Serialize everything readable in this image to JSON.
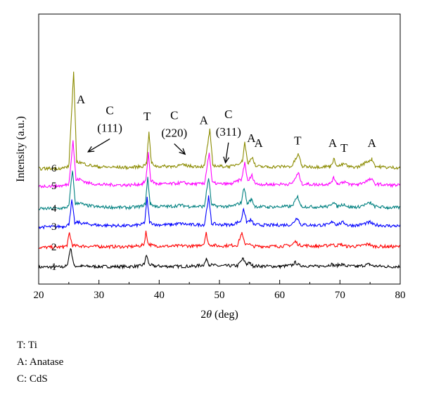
{
  "chart_data": {
    "type": "line",
    "xlabel_parts": [
      "2",
      "θ",
      " (deg)"
    ],
    "ylabel": "Intensity (a.u.)",
    "xlim": [
      20,
      80
    ],
    "x_ticks": [
      20,
      30,
      40,
      50,
      60,
      70,
      80
    ],
    "y_ticks": "none",
    "grid": false,
    "legend": "none",
    "series": [
      {
        "name": "1",
        "color": "#000000",
        "baseline": 0,
        "points": [
          [
            20,
            0
          ],
          [
            24,
            0.2
          ],
          [
            24.7,
            1
          ],
          [
            25.3,
            16
          ],
          [
            25.9,
            1
          ],
          [
            27,
            0.8
          ],
          [
            30,
            0.5
          ],
          [
            35,
            0.5
          ],
          [
            36.9,
            1
          ],
          [
            37.5,
            2.5
          ],
          [
            37.9,
            10
          ],
          [
            38.3,
            2.5
          ],
          [
            39,
            1
          ],
          [
            42,
            0.6
          ],
          [
            46,
            0.8
          ],
          [
            47.4,
            2
          ],
          [
            47.9,
            7
          ],
          [
            48.3,
            2
          ],
          [
            50,
            1
          ],
          [
            53,
            1.2
          ],
          [
            53.9,
            7
          ],
          [
            54.5,
            2.5
          ],
          [
            55,
            3.5
          ],
          [
            55.6,
            1
          ],
          [
            60,
            0.6
          ],
          [
            62,
            1.5
          ],
          [
            62.6,
            4
          ],
          [
            63.2,
            1.5
          ],
          [
            66,
            0.6
          ],
          [
            68,
            1.5
          ],
          [
            68.6,
            2.5
          ],
          [
            69.2,
            1
          ],
          [
            70.3,
            2.5
          ],
          [
            71,
            1
          ],
          [
            73,
            0.5
          ],
          [
            74.9,
            2.5
          ],
          [
            75.5,
            1
          ],
          [
            78,
            0.5
          ],
          [
            80,
            0.5
          ]
        ]
      },
      {
        "name": "2",
        "color": "#ff0000",
        "baseline": 0,
        "points": [
          [
            20,
            0
          ],
          [
            24,
            0.4
          ],
          [
            24.7,
            1.5
          ],
          [
            25.1,
            12
          ],
          [
            25.6,
            1.5
          ],
          [
            27,
            1.2
          ],
          [
            30,
            0.8
          ],
          [
            35,
            0.6
          ],
          [
            37,
            1.5
          ],
          [
            37.5,
            3
          ],
          [
            37.8,
            13
          ],
          [
            38.2,
            3
          ],
          [
            39,
            1.5
          ],
          [
            42,
            1
          ],
          [
            44,
            1.5
          ],
          [
            46,
            1
          ],
          [
            47.4,
            3
          ],
          [
            47.8,
            12
          ],
          [
            48.2,
            2.5
          ],
          [
            50,
            1.2
          ],
          [
            53,
            2
          ],
          [
            53.7,
            12
          ],
          [
            54.2,
            3
          ],
          [
            54.8,
            3.5
          ],
          [
            55.4,
            1
          ],
          [
            60,
            1
          ],
          [
            62,
            2
          ],
          [
            62.6,
            5
          ],
          [
            63.2,
            2
          ],
          [
            66,
            1
          ],
          [
            68,
            1.5
          ],
          [
            68.6,
            3
          ],
          [
            69.2,
            1.5
          ],
          [
            70.2,
            2.5
          ],
          [
            71,
            1
          ],
          [
            73,
            1
          ],
          [
            74.8,
            3
          ],
          [
            75.4,
            1
          ],
          [
            78,
            0.8
          ],
          [
            80,
            0.6
          ]
        ]
      },
      {
        "name": "3",
        "color": "#0000ff",
        "baseline": 0,
        "points": [
          [
            20,
            0
          ],
          [
            24,
            0.5
          ],
          [
            25,
            2
          ],
          [
            25.5,
            22
          ],
          [
            26,
            3
          ],
          [
            26.5,
            4
          ],
          [
            27.5,
            3
          ],
          [
            30,
            1.5
          ],
          [
            35,
            1
          ],
          [
            37,
            2
          ],
          [
            37.6,
            4
          ],
          [
            38,
            24
          ],
          [
            38.4,
            4
          ],
          [
            39.5,
            2
          ],
          [
            42,
            2
          ],
          [
            43.5,
            3
          ],
          [
            45,
            2
          ],
          [
            47.5,
            2
          ],
          [
            48.2,
            25
          ],
          [
            48.7,
            3
          ],
          [
            50,
            2
          ],
          [
            52,
            2
          ],
          [
            53.6,
            5
          ],
          [
            54,
            16
          ],
          [
            54.5,
            4
          ],
          [
            55.2,
            6
          ],
          [
            55.8,
            2
          ],
          [
            58,
            1.5
          ],
          [
            62,
            2
          ],
          [
            62.9,
            8
          ],
          [
            63.5,
            2
          ],
          [
            66,
            1.5
          ],
          [
            68.2,
            2
          ],
          [
            68.8,
            5
          ],
          [
            69.4,
            2
          ],
          [
            70.6,
            4
          ],
          [
            71.3,
            1.5
          ],
          [
            73,
            1.5
          ],
          [
            75,
            4
          ],
          [
            75.6,
            2
          ],
          [
            78,
            1
          ],
          [
            80,
            1
          ]
        ]
      },
      {
        "name": "4",
        "color": "#008080",
        "baseline": 0,
        "points": [
          [
            20,
            0
          ],
          [
            24,
            0.5
          ],
          [
            25,
            2
          ],
          [
            25.6,
            32
          ],
          [
            26.1,
            4
          ],
          [
            26.7,
            5
          ],
          [
            27.7,
            3
          ],
          [
            30,
            1.5
          ],
          [
            35,
            1
          ],
          [
            37,
            2
          ],
          [
            37.7,
            4
          ],
          [
            38.1,
            26
          ],
          [
            38.5,
            4
          ],
          [
            39.5,
            2
          ],
          [
            42,
            2
          ],
          [
            43.5,
            3
          ],
          [
            45,
            2
          ],
          [
            47.5,
            2
          ],
          [
            48.2,
            26
          ],
          [
            48.7,
            3
          ],
          [
            50,
            2
          ],
          [
            52,
            2
          ],
          [
            53.6,
            5
          ],
          [
            54.1,
            18
          ],
          [
            54.6,
            4
          ],
          [
            55.3,
            8
          ],
          [
            55.9,
            2
          ],
          [
            58,
            1.5
          ],
          [
            62,
            2
          ],
          [
            63,
            10
          ],
          [
            63.6,
            2
          ],
          [
            66,
            1.5
          ],
          [
            68.2,
            2
          ],
          [
            68.9,
            6
          ],
          [
            69.5,
            2
          ],
          [
            70.7,
            4
          ],
          [
            71.4,
            1.5
          ],
          [
            73,
            1.5
          ],
          [
            75.1,
            5
          ],
          [
            75.7,
            2
          ],
          [
            78,
            1
          ],
          [
            80,
            1
          ]
        ]
      },
      {
        "name": "5",
        "color": "#ff00ff",
        "baseline": 0,
        "points": [
          [
            20,
            0
          ],
          [
            24,
            0.5
          ],
          [
            25,
            2
          ],
          [
            25.7,
            38
          ],
          [
            26.2,
            5
          ],
          [
            26.8,
            6
          ],
          [
            28,
            3
          ],
          [
            30,
            1.5
          ],
          [
            35,
            1
          ],
          [
            37.2,
            2
          ],
          [
            37.8,
            5
          ],
          [
            38.2,
            28
          ],
          [
            38.6,
            5
          ],
          [
            39.5,
            2
          ],
          [
            42,
            2
          ],
          [
            43.8,
            3
          ],
          [
            45.5,
            2
          ],
          [
            47.5,
            2
          ],
          [
            48.3,
            28
          ],
          [
            48.8,
            3
          ],
          [
            50,
            2
          ],
          [
            52,
            2
          ],
          [
            53.7,
            6
          ],
          [
            54.2,
            20
          ],
          [
            54.7,
            4
          ],
          [
            55.4,
            9
          ],
          [
            56,
            2
          ],
          [
            58,
            1.5
          ],
          [
            62,
            2
          ],
          [
            63.1,
            11
          ],
          [
            63.7,
            2
          ],
          [
            66,
            1.5
          ],
          [
            68.3,
            2
          ],
          [
            69,
            7
          ],
          [
            69.6,
            2
          ],
          [
            70.8,
            4
          ],
          [
            71.5,
            1.5
          ],
          [
            73,
            1.5
          ],
          [
            75.2,
            6
          ],
          [
            75.8,
            2
          ],
          [
            78,
            1
          ],
          [
            80,
            1
          ]
        ]
      },
      {
        "name": "6",
        "color": "#8b8b00",
        "baseline": 0,
        "points": [
          [
            20,
            0
          ],
          [
            24,
            0.5
          ],
          [
            25,
            2
          ],
          [
            25.8,
            80
          ],
          [
            26.3,
            6
          ],
          [
            27,
            5
          ],
          [
            28.3,
            3
          ],
          [
            30,
            1.5
          ],
          [
            35,
            1
          ],
          [
            37.3,
            2
          ],
          [
            37.9,
            5
          ],
          [
            38.3,
            30
          ],
          [
            38.7,
            5
          ],
          [
            39.5,
            2
          ],
          [
            42,
            2
          ],
          [
            44,
            3
          ],
          [
            45.5,
            2
          ],
          [
            47.5,
            2
          ],
          [
            48.4,
            32
          ],
          [
            48.9,
            3
          ],
          [
            50,
            2
          ],
          [
            52,
            2
          ],
          [
            53.8,
            6
          ],
          [
            54.2,
            22
          ],
          [
            54.7,
            4
          ],
          [
            55.4,
            10
          ],
          [
            56,
            2
          ],
          [
            58,
            1.5
          ],
          [
            62,
            2
          ],
          [
            63.1,
            12
          ],
          [
            63.7,
            2
          ],
          [
            66,
            1.5
          ],
          [
            68.4,
            2
          ],
          [
            69,
            8
          ],
          [
            69.6,
            2
          ],
          [
            70.8,
            4
          ],
          [
            71.5,
            1.5
          ],
          [
            73,
            1.5
          ],
          [
            75.3,
            8
          ],
          [
            75.9,
            2
          ],
          [
            78,
            1
          ],
          [
            80,
            1
          ]
        ]
      }
    ],
    "annotations": [
      {
        "lines": [
          "A"
        ],
        "x": 27,
        "level": 54
      },
      {
        "lines": [
          "C",
          "(111)"
        ],
        "x": 31.8,
        "level": 45,
        "arrow_to": [
          28.2,
          14
        ]
      },
      {
        "lines": [
          "T"
        ],
        "x": 38,
        "level": 40
      },
      {
        "lines": [
          "C",
          "(220)"
        ],
        "x": 42.5,
        "level": 41,
        "arrow_to": [
          44.3,
          12
        ]
      },
      {
        "lines": [
          "A"
        ],
        "x": 47.4,
        "level": 37
      },
      {
        "lines": [
          "C",
          "(311)"
        ],
        "x": 51.5,
        "level": 42,
        "arrow_to": [
          51,
          5
        ]
      },
      {
        "lines": [
          "A"
        ],
        "x": 55.3,
        "level": 22
      },
      {
        "lines": [
          "A"
        ],
        "x": 56.5,
        "level": 18
      },
      {
        "lines": [
          "T"
        ],
        "x": 63,
        "level": 20
      },
      {
        "lines": [
          "A"
        ],
        "x": 68.8,
        "level": 18
      },
      {
        "lines": [
          "T"
        ],
        "x": 70.7,
        "level": 14
      },
      {
        "lines": [
          "A"
        ],
        "x": 75.3,
        "level": 18
      }
    ]
  },
  "notes": [
    "T: Ti",
    "A: Anatase",
    "C: CdS"
  ]
}
